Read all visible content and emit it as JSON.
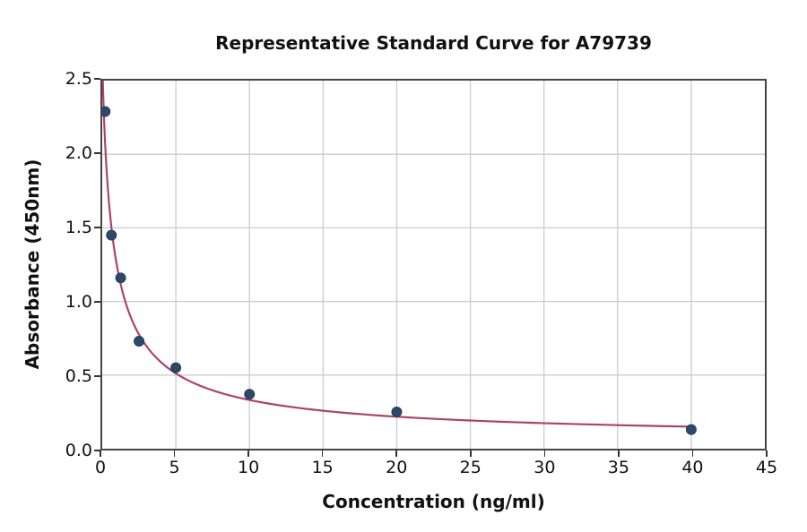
{
  "title": "Representative Standard Curve for A79739",
  "x_axis": {
    "label": "Concentration (ng/ml)",
    "tick_labels": [
      "0",
      "5",
      "10",
      "15",
      "20",
      "25",
      "30",
      "35",
      "40",
      "45"
    ],
    "tick_values": [
      0,
      5,
      10,
      15,
      20,
      25,
      30,
      35,
      40,
      45
    ],
    "range": [
      0,
      45
    ]
  },
  "y_axis": {
    "label": "Absorbance (450nm)",
    "tick_labels": [
      "0.0",
      "0.5",
      "1.0",
      "1.5",
      "2.0",
      "2.5"
    ],
    "tick_values": [
      0,
      0.5,
      1.0,
      1.5,
      2.0,
      2.5
    ],
    "range": [
      0,
      2.5
    ]
  },
  "chart_data": {
    "type": "scatter",
    "title": "Representative Standard Curve for A79739",
    "xlabel": "Concentration (ng/ml)",
    "ylabel": "Absorbance (450nm)",
    "xlim": [
      0,
      45
    ],
    "ylim": [
      0,
      2.5
    ],
    "grid": true,
    "legend": false,
    "points": [
      {
        "x": 0.2,
        "y": 2.29
      },
      {
        "x": 0.625,
        "y": 1.45
      },
      {
        "x": 1.25,
        "y": 1.16
      },
      {
        "x": 2.5,
        "y": 0.73
      },
      {
        "x": 5,
        "y": 0.55
      },
      {
        "x": 10,
        "y": 0.37
      },
      {
        "x": 20,
        "y": 0.25
      },
      {
        "x": 40,
        "y": 0.13
      }
    ],
    "fit_curve": {
      "model": "4PL",
      "a": 2.7,
      "b": 0.85,
      "c": 0.78,
      "d": 0.06,
      "x_start": 0.041,
      "x_end": 40
    }
  },
  "colors": {
    "point": "#2e486b",
    "point_edge": "#223a58",
    "curve": "#ae4266",
    "grid": "#cccccc",
    "spine": "#444444",
    "tick": "#333333",
    "text": "#111111",
    "background": "#ffffff"
  }
}
